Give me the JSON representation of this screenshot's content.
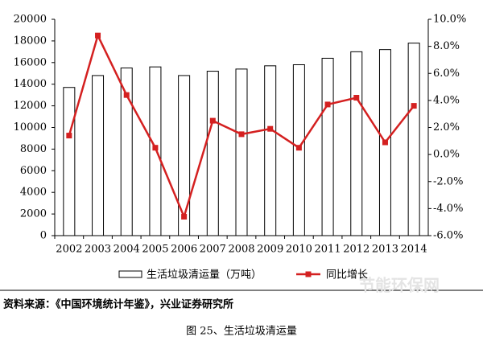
{
  "chart_data": {
    "type": "bar_line",
    "categories": [
      "2002",
      "2003",
      "2004",
      "2005",
      "2006",
      "2007",
      "2008",
      "2009",
      "2010",
      "2011",
      "2012",
      "2013",
      "2014"
    ],
    "series": [
      {
        "name": "生活垃圾清运量（万吨）",
        "type": "bar",
        "color": "#ffffff",
        "values": [
          13700,
          14800,
          15500,
          15600,
          14800,
          15200,
          15400,
          15700,
          15800,
          16400,
          17000,
          17200,
          17800
        ]
      },
      {
        "name": "同比增长",
        "type": "line",
        "axis": "y2",
        "color": "#d42020",
        "values": [
          1.4,
          8.8,
          4.4,
          0.5,
          -4.6,
          2.5,
          1.5,
          1.9,
          0.5,
          3.7,
          4.2,
          0.9,
          3.6
        ]
      }
    ],
    "ylim": [
      0,
      20000
    ],
    "yticks": [
      0,
      2000,
      4000,
      6000,
      8000,
      10000,
      12000,
      14000,
      16000,
      18000,
      20000
    ],
    "y2lim": [
      -6,
      10
    ],
    "y2ticks": [
      {
        "value": -6,
        "label": "-6.0%"
      },
      {
        "value": -4,
        "label": "-4.0%"
      },
      {
        "value": -2,
        "label": "-2.0%"
      },
      {
        "value": 0,
        "label": "0.0%"
      },
      {
        "value": 2,
        "label": "2.0%"
      },
      {
        "value": 4,
        "label": "4.0%"
      },
      {
        "value": 6,
        "label": "6.0%"
      },
      {
        "value": 8,
        "label": "8.0%"
      },
      {
        "value": 10,
        "label": "10.0%"
      }
    ],
    "source": "资料来源：《中国环境统计年鉴》，兴业证券研究所",
    "caption": "图 25、生活垃圾清运量",
    "watermark": "节能环保网"
  }
}
